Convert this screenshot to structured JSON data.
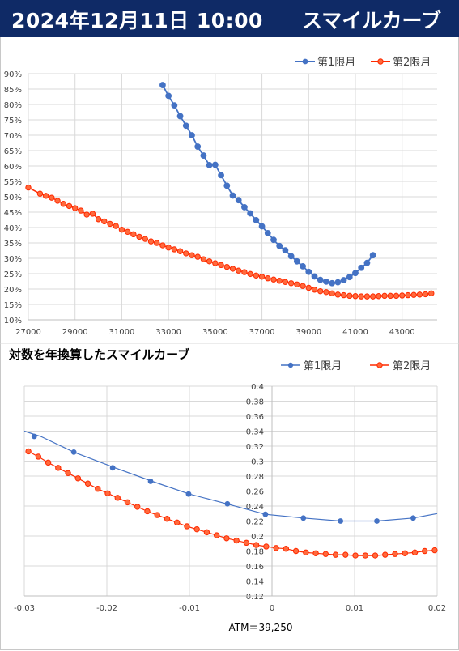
{
  "header": {
    "datetime": "2024年12月11日 10:00",
    "title": "スマイルカーブ"
  },
  "colors": {
    "series1": "#4472c4",
    "series2": "#ff2a00",
    "series2_fill": "#ff6a3d",
    "header_bg": "#0f2a66"
  },
  "chart_data": [
    {
      "type": "line",
      "title": "",
      "xlabel": "",
      "ylabel": "",
      "xlim": [
        27000,
        44500
      ],
      "ylim": [
        0.1,
        0.9
      ],
      "x_ticks": [
        27000,
        29000,
        31000,
        33000,
        35000,
        37000,
        39000,
        41000,
        43000
      ],
      "x_tick_labels": [
        "27000",
        "29000",
        "31000",
        "33000",
        "35000",
        "37000",
        "39000",
        "41000",
        "43000"
      ],
      "y_ticks": [
        0.1,
        0.15,
        0.2,
        0.25,
        0.3,
        0.35,
        0.4,
        0.45,
        0.5,
        0.55,
        0.6,
        0.65,
        0.7,
        0.75,
        0.8,
        0.85,
        0.9
      ],
      "y_tick_labels": [
        "10%",
        "15%",
        "20%",
        "25%",
        "30%",
        "35%",
        "40%",
        "45%",
        "50%",
        "55%",
        "60%",
        "65%",
        "70%",
        "75%",
        "80%",
        "85%",
        "90%"
      ],
      "grid": true,
      "legend": "top-right",
      "series": [
        {
          "name": "第1限月",
          "x": [
            32750,
            33000,
            33250,
            33500,
            33750,
            34000,
            34250,
            34500,
            34750,
            35000,
            35250,
            35500,
            35750,
            36000,
            36250,
            36500,
            36750,
            37000,
            37250,
            37500,
            37750,
            38000,
            38250,
            38500,
            38750,
            39000,
            39250,
            39500,
            39750,
            40000,
            40250,
            40500,
            40750,
            41000,
            41250,
            41500,
            41750
          ],
          "y": [
            0.863,
            0.828,
            0.797,
            0.762,
            0.731,
            0.7,
            0.663,
            0.634,
            0.603,
            0.604,
            0.57,
            0.536,
            0.504,
            0.489,
            0.466,
            0.446,
            0.424,
            0.404,
            0.382,
            0.36,
            0.34,
            0.326,
            0.307,
            0.29,
            0.274,
            0.256,
            0.241,
            0.23,
            0.224,
            0.219,
            0.222,
            0.229,
            0.239,
            0.252,
            0.269,
            0.285,
            0.31
          ]
        },
        {
          "name": "第2限月",
          "x": [
            27000,
            27500,
            27750,
            28000,
            28250,
            28500,
            28750,
            29000,
            29250,
            29500,
            29750,
            30000,
            30250,
            30500,
            30750,
            31000,
            31250,
            31500,
            31750,
            32000,
            32250,
            32500,
            32750,
            33000,
            33250,
            33500,
            33750,
            34000,
            34250,
            34500,
            34750,
            35000,
            35250,
            35500,
            35750,
            36000,
            36250,
            36500,
            36750,
            37000,
            37250,
            37500,
            37750,
            38000,
            38250,
            38500,
            38750,
            39000,
            39250,
            39500,
            39750,
            40000,
            40250,
            40500,
            40750,
            41000,
            41250,
            41500,
            41750,
            42000,
            42250,
            42500,
            42750,
            43000,
            43250,
            43500,
            43750,
            44000,
            44250
          ],
          "y": [
            0.53,
            0.51,
            0.503,
            0.497,
            0.487,
            0.477,
            0.47,
            0.463,
            0.455,
            0.442,
            0.445,
            0.427,
            0.42,
            0.412,
            0.405,
            0.393,
            0.386,
            0.378,
            0.37,
            0.363,
            0.355,
            0.35,
            0.342,
            0.335,
            0.329,
            0.323,
            0.316,
            0.31,
            0.305,
            0.297,
            0.29,
            0.284,
            0.278,
            0.272,
            0.266,
            0.26,
            0.255,
            0.249,
            0.244,
            0.24,
            0.235,
            0.231,
            0.227,
            0.223,
            0.219,
            0.215,
            0.21,
            0.204,
            0.198,
            0.193,
            0.19,
            0.186,
            0.182,
            0.18,
            0.178,
            0.177,
            0.176,
            0.176,
            0.176,
            0.177,
            0.178,
            0.178,
            0.178,
            0.179,
            0.18,
            0.181,
            0.182,
            0.183,
            0.186
          ]
        }
      ]
    },
    {
      "type": "line",
      "title": "対数を年換算したスマイルカーブ",
      "xlabel": "ATM＝39,250",
      "ylabel": "",
      "xlim": [
        -0.03,
        0.02
      ],
      "ylim": [
        0.12,
        0.4
      ],
      "x_ticks": [
        -0.03,
        -0.02,
        -0.01,
        0,
        0.01,
        0.02
      ],
      "x_tick_labels": [
        "-0.03",
        "-0.02",
        "-0.01",
        "0",
        "0.01",
        "0.02"
      ],
      "y_ticks": [
        0.12,
        0.14,
        0.16,
        0.18,
        0.2,
        0.22,
        0.24,
        0.26,
        0.28,
        0.3,
        0.32,
        0.34,
        0.36,
        0.38,
        0.4
      ],
      "y_tick_labels": [
        "0.12",
        "0.14",
        "0.16",
        "0.18",
        "0.2",
        "0.22",
        "0.24",
        "0.26",
        "0.28",
        "0.3",
        "0.32",
        "0.34",
        "0.36",
        "0.38",
        "0.4"
      ],
      "grid": true,
      "legend": "top-right",
      "series": [
        {
          "name": "第1限月",
          "line_x": [
            -0.03,
            -0.028,
            -0.024,
            -0.019,
            -0.0145,
            -0.01,
            -0.0055,
            -0.0008,
            0.0038,
            0.0083,
            0.0127,
            0.0171,
            0.02
          ],
          "line_y": [
            0.34,
            0.333,
            0.312,
            0.291,
            0.273,
            0.256,
            0.243,
            0.229,
            0.224,
            0.22,
            0.22,
            0.224,
            0.23
          ],
          "x": [
            -0.0288,
            -0.024,
            -0.0193,
            -0.0147,
            -0.0101,
            -0.0054,
            -0.0008,
            0.0038,
            0.0083,
            0.0127,
            0.0171
          ],
          "y": [
            0.333,
            0.312,
            0.291,
            0.273,
            0.256,
            0.243,
            0.229,
            0.224,
            0.22,
            0.22,
            0.224
          ]
        },
        {
          "name": "第2限月",
          "x": [
            -0.0295,
            -0.0283,
            -0.0271,
            -0.0259,
            -0.0247,
            -0.0235,
            -0.0223,
            -0.0211,
            -0.0199,
            -0.0187,
            -0.0175,
            -0.0163,
            -0.0151,
            -0.0139,
            -0.0127,
            -0.0115,
            -0.0103,
            -0.0091,
            -0.0079,
            -0.0067,
            -0.0055,
            -0.0043,
            -0.0031,
            -0.0019,
            -0.0007,
            0.0005,
            0.0017,
            0.0029,
            0.0041,
            0.0053,
            0.0065,
            0.0077,
            0.0089,
            0.0101,
            0.0113,
            0.0125,
            0.0137,
            0.0149,
            0.0161,
            0.0173,
            0.0185,
            0.0197
          ],
          "y": [
            0.313,
            0.306,
            0.298,
            0.291,
            0.284,
            0.277,
            0.27,
            0.263,
            0.257,
            0.251,
            0.245,
            0.239,
            0.233,
            0.228,
            0.223,
            0.218,
            0.213,
            0.209,
            0.205,
            0.201,
            0.197,
            0.194,
            0.191,
            0.188,
            0.186,
            0.184,
            0.183,
            0.18,
            0.178,
            0.177,
            0.176,
            0.175,
            0.175,
            0.174,
            0.174,
            0.174,
            0.175,
            0.176,
            0.177,
            0.178,
            0.18,
            0.181
          ]
        }
      ]
    }
  ]
}
